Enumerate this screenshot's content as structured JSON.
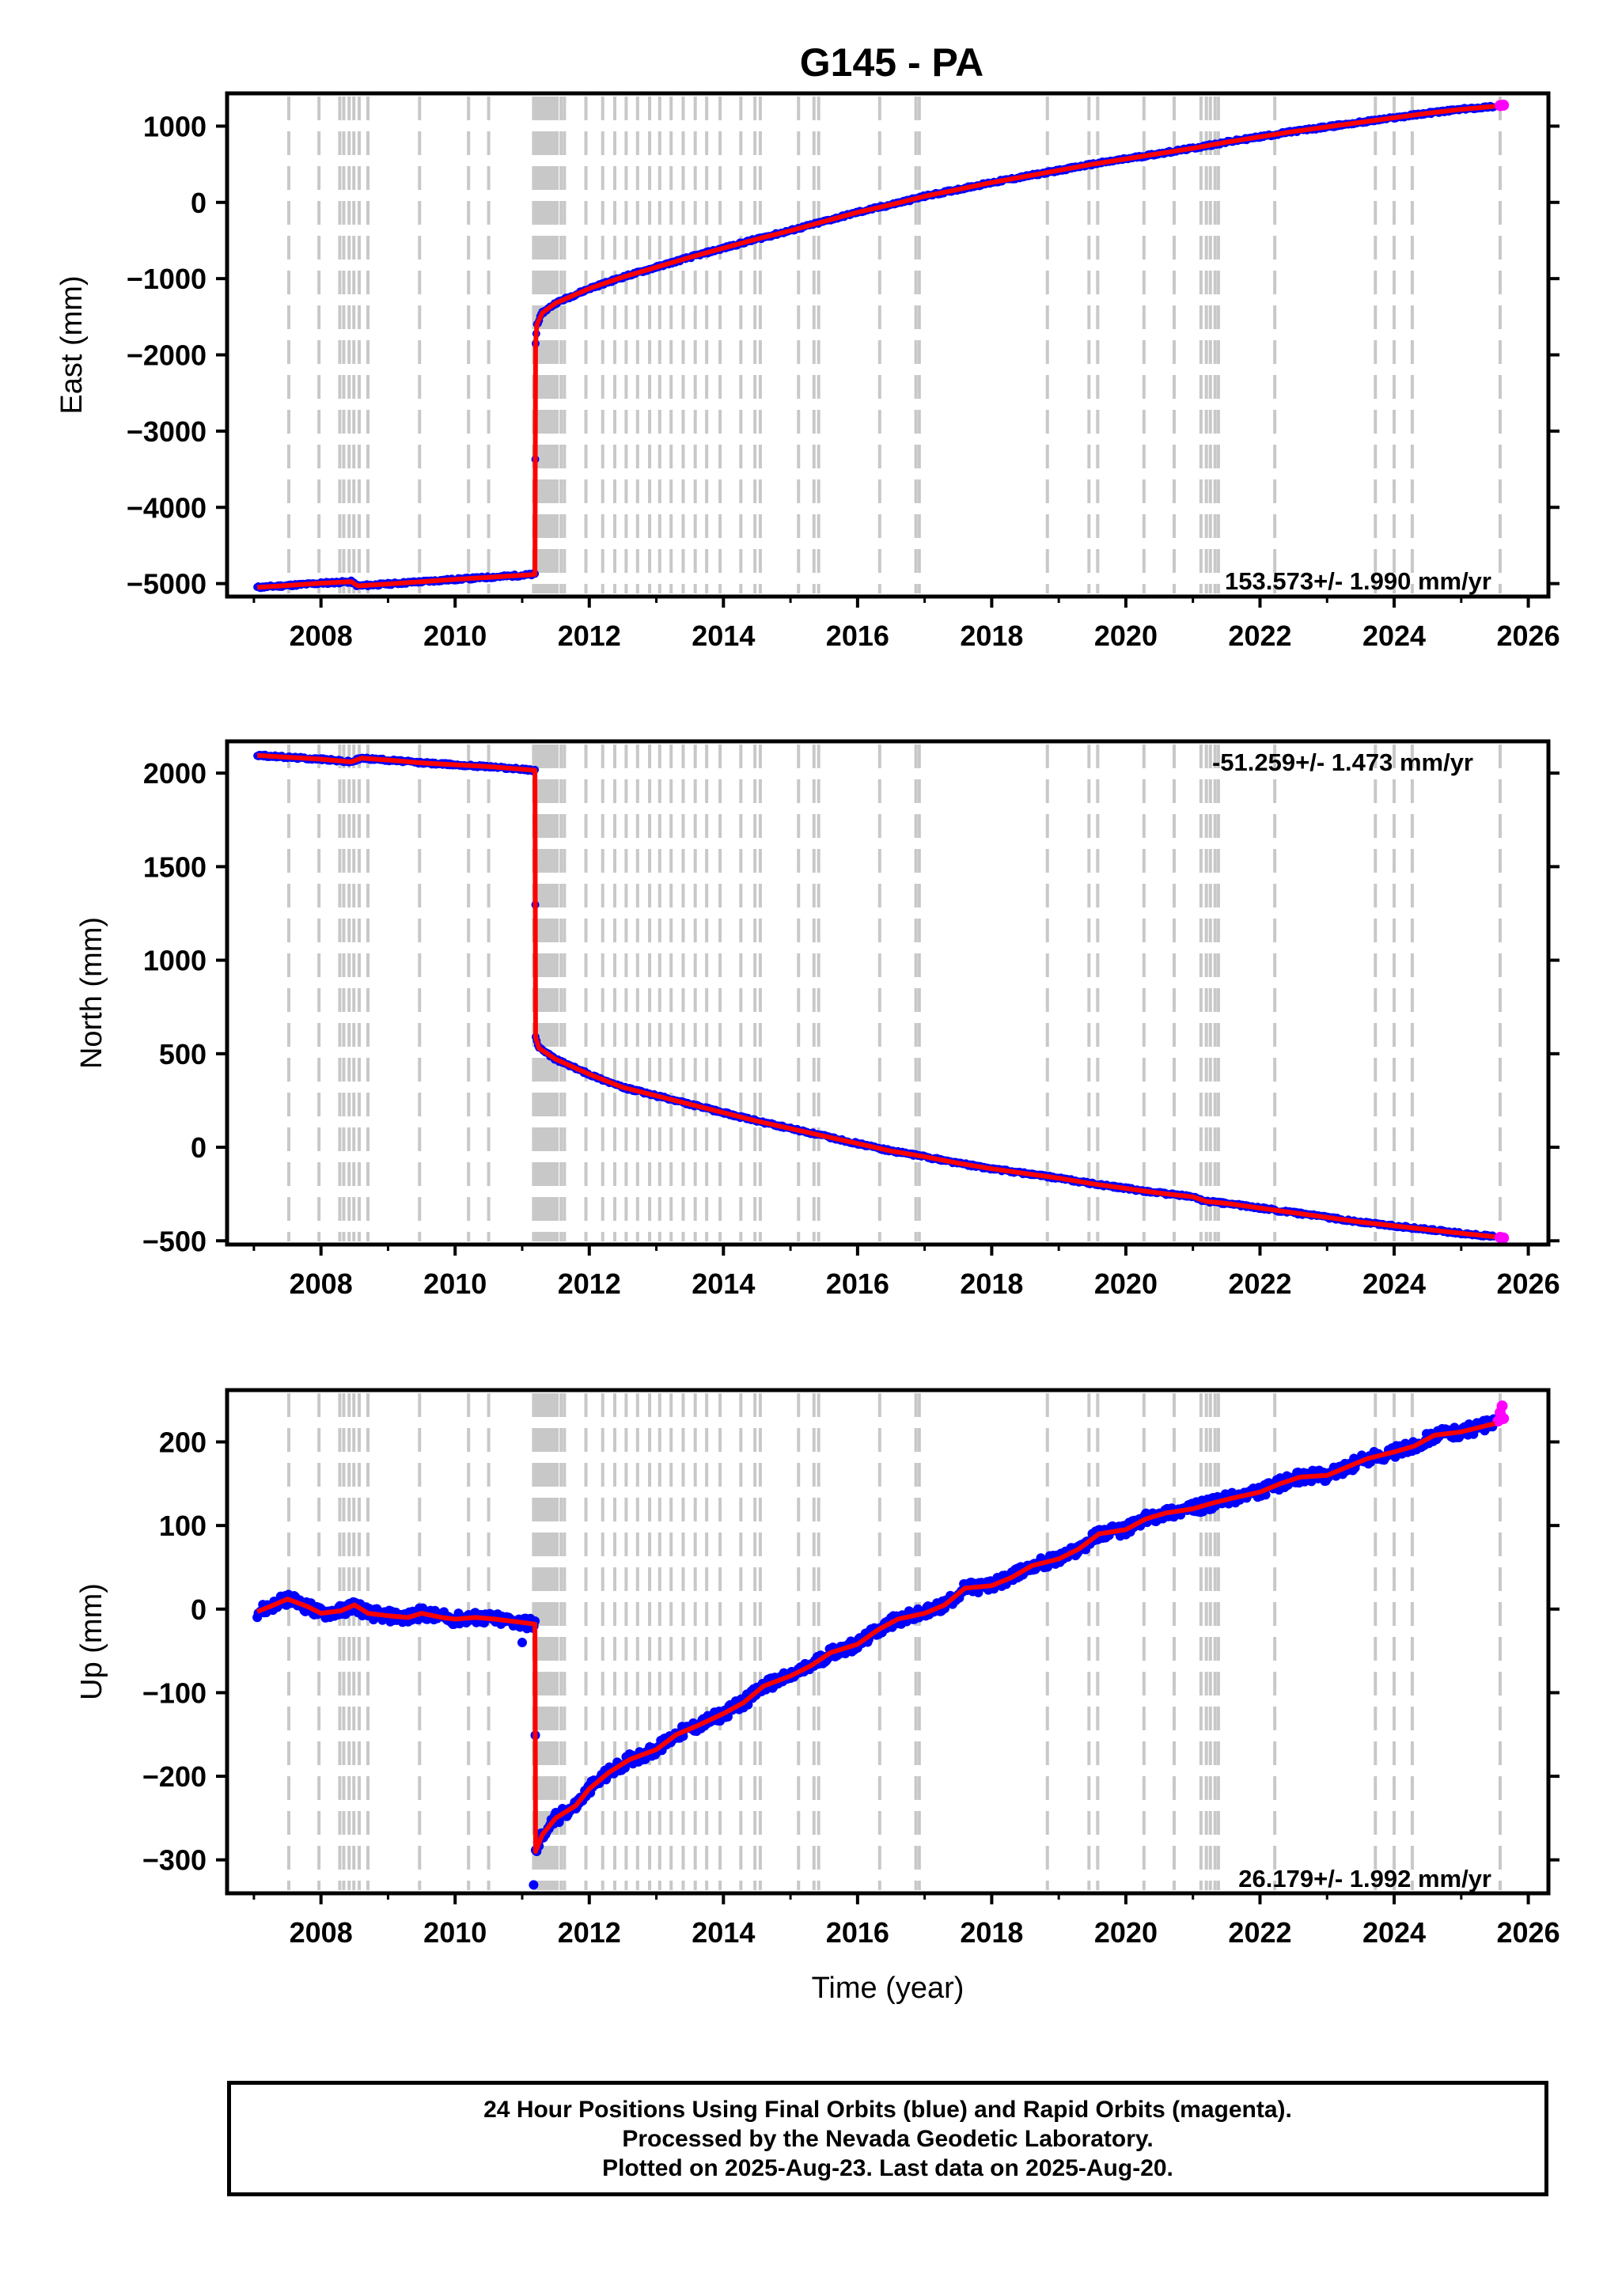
{
  "title": "G145 - PA",
  "footer": {
    "line1": "24 Hour Positions Using Final Orbits (blue) and Rapid Orbits (magenta).",
    "line2": "Processed by the Nevada Geodetic Laboratory.",
    "line3": "Plotted on 2025-Aug-23. Last data on 2025-Aug-20."
  },
  "colors": {
    "final": "#0000ff",
    "rapid": "#ff00ff",
    "model": "#ff0000",
    "event": "#c8c8c8"
  },
  "event_years": [
    2007.52,
    2007.97,
    2008.28,
    2008.34,
    2008.42,
    2008.49,
    2008.57,
    2008.7,
    2009.47,
    2010.2,
    2010.5,
    2011.17,
    2011.2,
    2011.23,
    2011.26,
    2011.29,
    2011.32,
    2011.36,
    2011.4,
    2011.44,
    2011.48,
    2011.52,
    2011.58,
    2011.63,
    2011.95,
    2012.2,
    2012.38,
    2012.55,
    2012.72,
    2012.9,
    2013.05,
    2013.22,
    2013.4,
    2013.58,
    2013.75,
    2013.95,
    2014.26,
    2014.47,
    2014.55,
    2015.12,
    2015.35,
    2015.42,
    2016.33,
    2016.87,
    2016.92,
    2018.83,
    2019.45,
    2019.58,
    2020.27,
    2020.72,
    2021.12,
    2021.2,
    2021.26,
    2021.33,
    2021.38,
    2022.22,
    2023.72,
    2024.0,
    2024.27,
    2025.58
  ],
  "chart_data": [
    {
      "type": "scatter",
      "component": "East",
      "ylabel": "East (mm)",
      "xlabel": "",
      "xlim": [
        2006.6,
        2026.3
      ],
      "ylim": [
        -5170,
        1430
      ],
      "xticks": [
        "2008",
        "2010",
        "2012",
        "2014",
        "2016",
        "2018",
        "2020",
        "2022",
        "2024",
        "2026"
      ],
      "yticks": [
        "1000",
        "0",
        "−1000",
        "−2000",
        "−3000",
        "−4000",
        "−5000"
      ],
      "ytick_values": [
        1000,
        0,
        -1000,
        -2000,
        -3000,
        -4000,
        -5000
      ],
      "rate_label": "153.573+/- 1.990 mm/yr",
      "rate_position": "bottom-right",
      "final_series": [
        [
          2007.05,
          -5050
        ],
        [
          2007.5,
          -5025
        ],
        [
          2008.0,
          -4995
        ],
        [
          2008.45,
          -4975
        ],
        [
          2008.55,
          -5030
        ],
        [
          2009.0,
          -5005
        ],
        [
          2009.5,
          -4975
        ],
        [
          2010.0,
          -4945
        ],
        [
          2010.5,
          -4918
        ],
        [
          2011.19,
          -4880
        ],
        [
          2011.2,
          -1850
        ],
        [
          2011.22,
          -1600
        ],
        [
          2011.3,
          -1450
        ],
        [
          2011.5,
          -1320
        ],
        [
          2012.0,
          -1130
        ],
        [
          2012.5,
          -980
        ],
        [
          2013.0,
          -850
        ],
        [
          2013.5,
          -720
        ],
        [
          2014.0,
          -600
        ],
        [
          2014.5,
          -480
        ],
        [
          2015.0,
          -370
        ],
        [
          2015.5,
          -250
        ],
        [
          2016.0,
          -130
        ],
        [
          2016.5,
          -30
        ],
        [
          2017.0,
          80
        ],
        [
          2017.5,
          170
        ],
        [
          2018.0,
          260
        ],
        [
          2018.5,
          340
        ],
        [
          2019.0,
          420
        ],
        [
          2019.5,
          500
        ],
        [
          2020.0,
          570
        ],
        [
          2020.5,
          640
        ],
        [
          2021.0,
          710
        ],
        [
          2021.5,
          790
        ],
        [
          2022.0,
          860
        ],
        [
          2022.5,
          930
        ],
        [
          2023.0,
          990
        ],
        [
          2023.5,
          1050
        ],
        [
          2024.0,
          1110
        ],
        [
          2024.5,
          1170
        ],
        [
          2025.0,
          1220
        ],
        [
          2025.5,
          1260
        ]
      ],
      "rapid_series": [
        [
          2025.58,
          1270
        ],
        [
          2025.63,
          1275
        ]
      ]
    },
    {
      "type": "scatter",
      "component": "North",
      "ylabel": "North (mm)",
      "xlabel": "",
      "xlim": [
        2006.6,
        2026.3
      ],
      "ylim": [
        -520,
        2170
      ],
      "xticks": [
        "2008",
        "2010",
        "2012",
        "2014",
        "2016",
        "2018",
        "2020",
        "2022",
        "2024",
        "2026"
      ],
      "yticks": [
        "2000",
        "1500",
        "1000",
        "500",
        "0",
        "−500"
      ],
      "ytick_values": [
        2000,
        1500,
        1000,
        500,
        0,
        -500
      ],
      "rate_label": "-51.259+/- 1.473 mm/yr",
      "rate_position": "top-right",
      "final_series": [
        [
          2007.05,
          2095
        ],
        [
          2007.5,
          2085
        ],
        [
          2008.0,
          2075
        ],
        [
          2008.45,
          2060
        ],
        [
          2008.6,
          2080
        ],
        [
          2009.0,
          2070
        ],
        [
          2009.5,
          2055
        ],
        [
          2010.0,
          2045
        ],
        [
          2010.5,
          2035
        ],
        [
          2011.19,
          2015
        ],
        [
          2011.2,
          590
        ],
        [
          2011.25,
          530
        ],
        [
          2011.5,
          470
        ],
        [
          2012.0,
          390
        ],
        [
          2012.5,
          320
        ],
        [
          2013.0,
          275
        ],
        [
          2013.5,
          230
        ],
        [
          2014.0,
          185
        ],
        [
          2014.5,
          140
        ],
        [
          2015.0,
          100
        ],
        [
          2015.5,
          60
        ],
        [
          2016.0,
          20
        ],
        [
          2016.5,
          -20
        ],
        [
          2017.0,
          -50
        ],
        [
          2017.5,
          -85
        ],
        [
          2018.0,
          -115
        ],
        [
          2018.5,
          -140
        ],
        [
          2019.0,
          -165
        ],
        [
          2019.5,
          -195
        ],
        [
          2020.0,
          -220
        ],
        [
          2020.5,
          -245
        ],
        [
          2021.0,
          -265
        ],
        [
          2021.2,
          -290
        ],
        [
          2021.5,
          -300
        ],
        [
          2022.0,
          -325
        ],
        [
          2022.5,
          -350
        ],
        [
          2023.0,
          -375
        ],
        [
          2023.5,
          -400
        ],
        [
          2024.0,
          -420
        ],
        [
          2024.5,
          -440
        ],
        [
          2025.0,
          -460
        ],
        [
          2025.5,
          -478
        ]
      ],
      "rapid_series": [
        [
          2025.58,
          -482
        ],
        [
          2025.63,
          -485
        ]
      ]
    },
    {
      "type": "scatter",
      "component": "Up",
      "ylabel": "Up (mm)",
      "xlabel": "Time (year)",
      "xlim": [
        2006.6,
        2026.3
      ],
      "ylim": [
        -340,
        262
      ],
      "xticks": [
        "2008",
        "2010",
        "2012",
        "2014",
        "2016",
        "2018",
        "2020",
        "2022",
        "2024",
        "2026"
      ],
      "yticks": [
        "200",
        "100",
        "0",
        "−100",
        "−200",
        "−300"
      ],
      "ytick_values": [
        200,
        100,
        0,
        -100,
        -200,
        -300
      ],
      "rate_label": "26.179+/- 1.992 mm/yr",
      "rate_position": "bottom-right",
      "final_series": [
        [
          2007.05,
          -3
        ],
        [
          2007.3,
          5
        ],
        [
          2007.5,
          12
        ],
        [
          2007.8,
          3
        ],
        [
          2008.0,
          -5
        ],
        [
          2008.3,
          -2
        ],
        [
          2008.5,
          5
        ],
        [
          2008.7,
          -5
        ],
        [
          2009.0,
          -8
        ],
        [
          2009.3,
          -10
        ],
        [
          2009.5,
          -5
        ],
        [
          2009.8,
          -10
        ],
        [
          2010.0,
          -12
        ],
        [
          2010.3,
          -10
        ],
        [
          2010.6,
          -12
        ],
        [
          2010.9,
          -15
        ],
        [
          2011.19,
          -18
        ],
        [
          2011.2,
          -290
        ],
        [
          2011.3,
          -270
        ],
        [
          2011.5,
          -250
        ],
        [
          2011.8,
          -235
        ],
        [
          2012.0,
          -215
        ],
        [
          2012.3,
          -195
        ],
        [
          2012.6,
          -180
        ],
        [
          2013.0,
          -168
        ],
        [
          2013.3,
          -150
        ],
        [
          2013.6,
          -140
        ],
        [
          2014.0,
          -125
        ],
        [
          2014.3,
          -112
        ],
        [
          2014.6,
          -92
        ],
        [
          2015.0,
          -80
        ],
        [
          2015.3,
          -68
        ],
        [
          2015.6,
          -52
        ],
        [
          2016.0,
          -42
        ],
        [
          2016.3,
          -25
        ],
        [
          2016.6,
          -12
        ],
        [
          2017.0,
          -5
        ],
        [
          2017.3,
          5
        ],
        [
          2017.6,
          25
        ],
        [
          2018.0,
          28
        ],
        [
          2018.3,
          38
        ],
        [
          2018.6,
          52
        ],
        [
          2019.0,
          60
        ],
        [
          2019.3,
          72
        ],
        [
          2019.6,
          90
        ],
        [
          2020.0,
          95
        ],
        [
          2020.3,
          108
        ],
        [
          2020.6,
          115
        ],
        [
          2021.0,
          120
        ],
        [
          2021.3,
          127
        ],
        [
          2021.6,
          133
        ],
        [
          2022.0,
          140
        ],
        [
          2022.3,
          150
        ],
        [
          2022.6,
          158
        ],
        [
          2023.0,
          160
        ],
        [
          2023.3,
          170
        ],
        [
          2023.6,
          180
        ],
        [
          2024.0,
          188
        ],
        [
          2024.3,
          195
        ],
        [
          2024.6,
          208
        ],
        [
          2025.0,
          212
        ],
        [
          2025.3,
          218
        ],
        [
          2025.5,
          222
        ]
      ],
      "rapid_series": [
        [
          2025.55,
          225
        ],
        [
          2025.58,
          235
        ],
        [
          2025.61,
          243
        ],
        [
          2025.63,
          228
        ]
      ],
      "outliers": [
        [
          2011.17,
          -330
        ],
        [
          2011.0,
          -40
        ],
        [
          2011.55,
          -255
        ]
      ]
    }
  ]
}
